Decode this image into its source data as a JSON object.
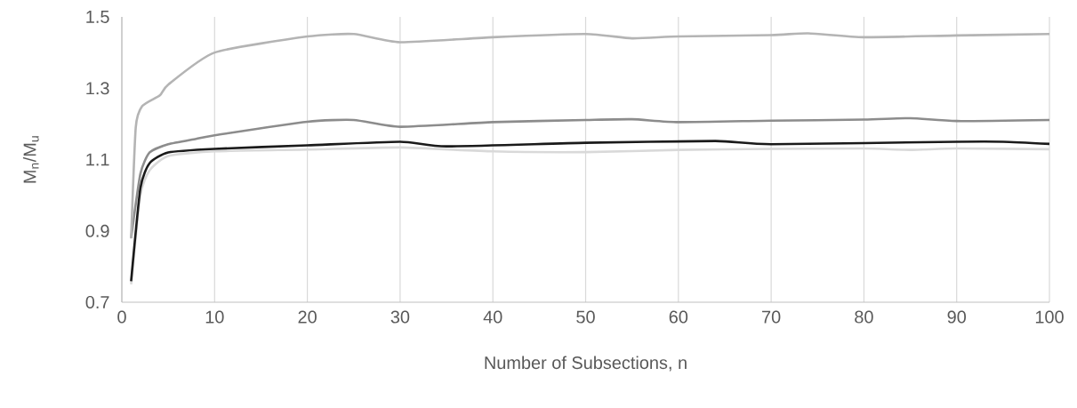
{
  "chart_data": {
    "type": "line",
    "xlabel": "Number of Subsections, n",
    "ylabel": "M$_{n}$/M$_{u}$",
    "xlim": [
      0,
      100
    ],
    "ylim": [
      0.7,
      1.5
    ],
    "xticks": [
      0,
      10,
      20,
      30,
      40,
      50,
      60,
      70,
      80,
      90,
      100
    ],
    "yticks": [
      0.7,
      0.9,
      1.1,
      1.3,
      1.5
    ],
    "grid": "x",
    "legend": false,
    "marker": "none",
    "line_style": "solid",
    "series": [
      {
        "color": "#d9d9d9",
        "x": [
          1,
          2,
          3,
          5,
          10,
          20,
          30,
          40,
          50,
          60,
          70,
          80,
          85,
          90,
          100
        ],
        "values": [
          0.75,
          1.0,
          1.07,
          1.11,
          1.123,
          1.128,
          1.134,
          1.123,
          1.121,
          1.127,
          1.13,
          1.131,
          1.127,
          1.131,
          1.129
        ]
      },
      {
        "color": "#8c8c8c",
        "x": [
          1,
          2,
          3,
          5,
          8,
          10,
          20,
          25,
          30,
          40,
          50,
          55,
          60,
          70,
          80,
          85,
          90,
          100
        ],
        "values": [
          0.88,
          1.06,
          1.12,
          1.143,
          1.158,
          1.168,
          1.206,
          1.211,
          1.192,
          1.205,
          1.211,
          1.213,
          1.205,
          1.209,
          1.212,
          1.216,
          1.208,
          1.211
        ]
      },
      {
        "color": "#1a1a1a",
        "x": [
          1,
          2,
          3,
          5,
          10,
          20,
          30,
          35,
          50,
          64,
          70,
          90,
          95,
          100
        ],
        "values": [
          0.759,
          1.02,
          1.09,
          1.12,
          1.13,
          1.14,
          1.15,
          1.137,
          1.147,
          1.152,
          1.143,
          1.15,
          1.15,
          1.144
        ]
      },
      {
        "color": "#b4b4b4",
        "x": [
          1,
          1.5,
          2.2,
          4.1,
          5,
          10,
          20,
          25,
          30,
          40,
          50,
          55,
          60,
          70,
          74,
          80,
          90,
          100
        ],
        "values": [
          0.879,
          1.19,
          1.25,
          1.28,
          1.31,
          1.4,
          1.445,
          1.452,
          1.429,
          1.443,
          1.452,
          1.44,
          1.445,
          1.449,
          1.454,
          1.443,
          1.448,
          1.452
        ]
      }
    ]
  }
}
